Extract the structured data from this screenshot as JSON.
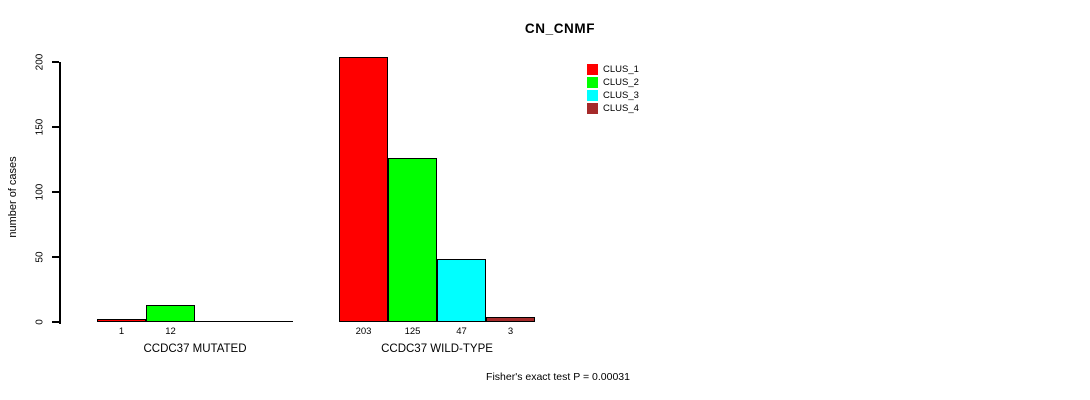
{
  "chart_data": {
    "type": "bar",
    "title": "CN_CNMF",
    "xlabel": "",
    "ylabel": "number of cases",
    "ylim": [
      0,
      200
    ],
    "yticks": [
      0,
      50,
      100,
      150,
      200
    ],
    "grid": false,
    "legend_position": "top-right",
    "annotation": "Fisher's exact test P = 0.00031",
    "categories": [
      "CCDC37 MUTATED",
      "CCDC37 WILD-TYPE"
    ],
    "series": [
      {
        "name": "CLUS_1",
        "color": "#ff0000",
        "values": [
          1,
          203
        ]
      },
      {
        "name": "CLUS_2",
        "color": "#00ff00",
        "values": [
          12,
          125
        ]
      },
      {
        "name": "CLUS_3",
        "color": "#00ffff",
        "values": [
          0,
          47
        ]
      },
      {
        "name": "CLUS_4",
        "color": "#a52a2a",
        "values": [
          0,
          3
        ]
      }
    ],
    "bar_value_labels": [
      [
        "1",
        "12",
        "",
        ""
      ],
      [
        "203",
        "125",
        "47",
        "3"
      ]
    ]
  }
}
